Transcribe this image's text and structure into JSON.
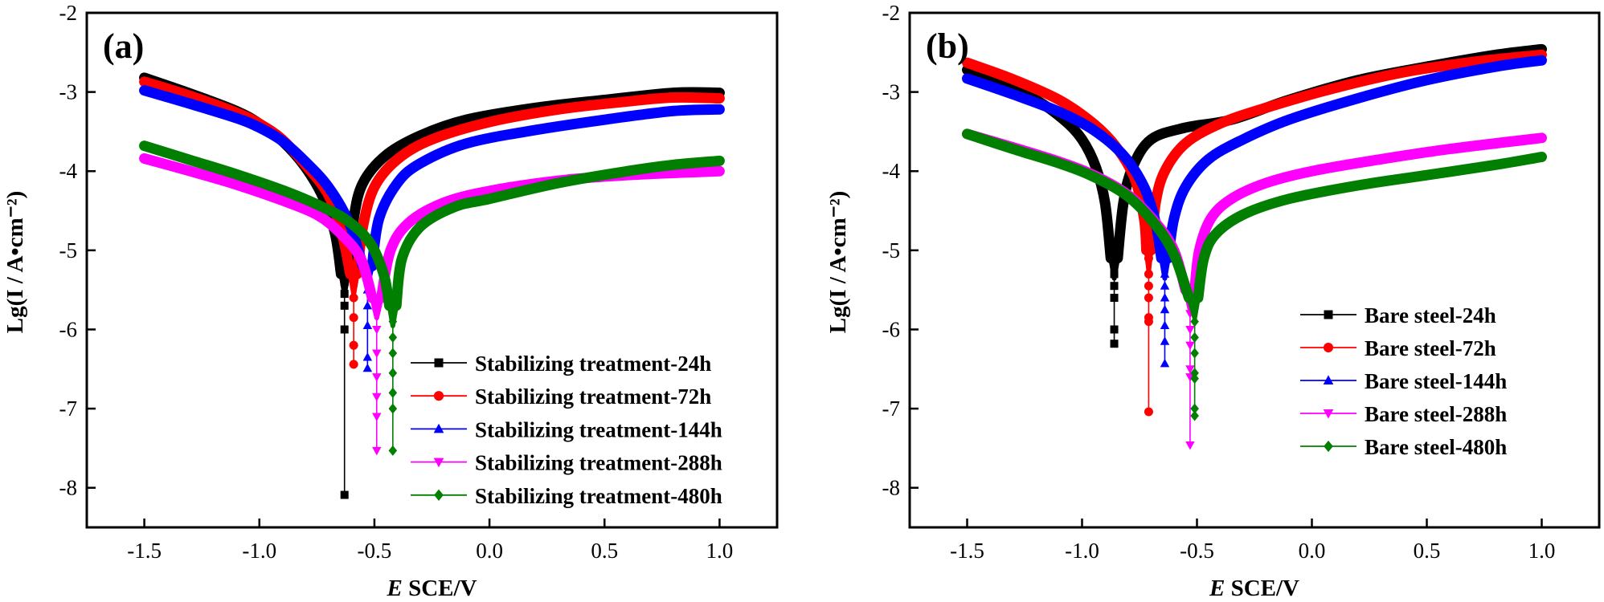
{
  "chart_data": [
    {
      "type": "line",
      "panel_label": "(a)",
      "xlabel_italic": "E",
      "xlabel_rest": " SCE/V",
      "ylabel": "Lg(I / A•cm⁻²)",
      "xlim": [
        -1.75,
        1.25
      ],
      "ylim": [
        -8.5,
        -2
      ],
      "xticks": [
        -1.5,
        -1.0,
        -0.5,
        0.0,
        0.5,
        1.0
      ],
      "xtick_labels": [
        "-1.5",
        "-1.0",
        "-0.5",
        "0.0",
        "0.5",
        "1.0"
      ],
      "yticks": [
        -2,
        -3,
        -4,
        -5,
        -6,
        -7,
        -8
      ],
      "ytick_labels": [
        "-2",
        "-3",
        "-4",
        "-5",
        "-6",
        "-7",
        "-8"
      ],
      "legend_position": "bottom-right",
      "series": [
        {
          "name": "Stabilizing treatment-24h",
          "color": "#000000",
          "marker": "square",
          "ecorr": -0.63,
          "min_log_i": -8.09,
          "cathodic": [
            [
              -1.5,
              -2.82
            ],
            [
              -1.3,
              -3.02
            ],
            [
              -1.1,
              -3.24
            ],
            [
              -1.0,
              -3.4
            ],
            [
              -0.9,
              -3.62
            ],
            [
              -0.8,
              -3.95
            ],
            [
              -0.72,
              -4.35
            ],
            [
              -0.67,
              -4.8
            ],
            [
              -0.645,
              -5.3
            ]
          ],
          "anodic": [
            [
              -0.615,
              -5.3
            ],
            [
              -0.59,
              -4.6
            ],
            [
              -0.55,
              -4.15
            ],
            [
              -0.45,
              -3.8
            ],
            [
              -0.3,
              -3.55
            ],
            [
              -0.1,
              -3.35
            ],
            [
              0.2,
              -3.2
            ],
            [
              0.5,
              -3.1
            ],
            [
              0.8,
              -3.01
            ],
            [
              1.0,
              -3.01
            ]
          ],
          "tip_markers": [
            -5.4,
            -5.55,
            -5.7,
            -6.0,
            -8.09
          ]
        },
        {
          "name": "Stabilizing treatment-72h",
          "color": "#ff0000",
          "marker": "circle",
          "ecorr": -0.59,
          "min_log_i": -6.44,
          "cathodic": [
            [
              -1.5,
              -2.87
            ],
            [
              -1.3,
              -3.05
            ],
            [
              -1.1,
              -3.26
            ],
            [
              -1.0,
              -3.4
            ],
            [
              -0.9,
              -3.6
            ],
            [
              -0.8,
              -3.92
            ],
            [
              -0.7,
              -4.3
            ],
            [
              -0.64,
              -4.8
            ],
            [
              -0.605,
              -5.3
            ]
          ],
          "anodic": [
            [
              -0.575,
              -5.3
            ],
            [
              -0.55,
              -4.7
            ],
            [
              -0.5,
              -4.2
            ],
            [
              -0.4,
              -3.85
            ],
            [
              -0.25,
              -3.6
            ],
            [
              0.0,
              -3.38
            ],
            [
              0.3,
              -3.22
            ],
            [
              0.6,
              -3.12
            ],
            [
              0.8,
              -3.07
            ],
            [
              1.0,
              -3.08
            ]
          ],
          "tip_markers": [
            -5.4,
            -5.6,
            -5.85,
            -6.2,
            -6.44
          ]
        },
        {
          "name": "Stabilizing treatment-144h",
          "color": "#0000ff",
          "marker": "triangle-up",
          "ecorr": -0.53,
          "min_log_i": -6.49,
          "cathodic": [
            [
              -1.5,
              -2.98
            ],
            [
              -1.3,
              -3.15
            ],
            [
              -1.1,
              -3.33
            ],
            [
              -1.0,
              -3.45
            ],
            [
              -0.9,
              -3.62
            ],
            [
              -0.8,
              -3.88
            ],
            [
              -0.7,
              -4.2
            ],
            [
              -0.61,
              -4.65
            ],
            [
              -0.55,
              -5.2
            ]
          ],
          "anodic": [
            [
              -0.51,
              -5.2
            ],
            [
              -0.48,
              -4.6
            ],
            [
              -0.4,
              -4.15
            ],
            [
              -0.3,
              -3.9
            ],
            [
              -0.1,
              -3.65
            ],
            [
              0.2,
              -3.48
            ],
            [
              0.5,
              -3.35
            ],
            [
              0.8,
              -3.24
            ],
            [
              1.0,
              -3.22
            ]
          ],
          "tip_markers": [
            -5.3,
            -5.5,
            -5.7,
            -5.95,
            -6.35,
            -6.49
          ]
        },
        {
          "name": "Stabilizing treatment-288h",
          "color": "#ff00ff",
          "marker": "triangle-down",
          "ecorr": -0.49,
          "min_log_i": -7.53,
          "cathodic": [
            [
              -1.5,
              -3.84
            ],
            [
              -1.3,
              -4.0
            ],
            [
              -1.1,
              -4.17
            ],
            [
              -0.9,
              -4.37
            ],
            [
              -0.75,
              -4.55
            ],
            [
              -0.65,
              -4.78
            ],
            [
              -0.56,
              -5.1
            ],
            [
              -0.51,
              -5.6
            ]
          ],
          "anodic": [
            [
              -0.47,
              -5.6
            ],
            [
              -0.43,
              -5.0
            ],
            [
              -0.35,
              -4.65
            ],
            [
              -0.2,
              -4.4
            ],
            [
              0.0,
              -4.25
            ],
            [
              0.3,
              -4.12
            ],
            [
              0.6,
              -4.05
            ],
            [
              1.0,
              -4.0
            ]
          ],
          "tip_markers": [
            -5.8,
            -6.0,
            -6.3,
            -6.6,
            -6.85,
            -7.1,
            -7.53
          ]
        },
        {
          "name": "Stabilizing treatment-480h",
          "color": "#007f00",
          "marker": "diamond",
          "ecorr": -0.42,
          "min_log_i": -7.53,
          "cathodic": [
            [
              -1.5,
              -3.68
            ],
            [
              -1.3,
              -3.86
            ],
            [
              -1.1,
              -4.04
            ],
            [
              -0.9,
              -4.24
            ],
            [
              -0.75,
              -4.42
            ],
            [
              -0.62,
              -4.62
            ],
            [
              -0.52,
              -4.9
            ],
            [
              -0.46,
              -5.3
            ],
            [
              -0.435,
              -5.7
            ]
          ],
          "anodic": [
            [
              -0.405,
              -5.7
            ],
            [
              -0.38,
              -5.1
            ],
            [
              -0.3,
              -4.7
            ],
            [
              -0.15,
              -4.45
            ],
            [
              0.0,
              -4.35
            ],
            [
              0.3,
              -4.15
            ],
            [
              0.6,
              -4.0
            ],
            [
              0.8,
              -3.92
            ],
            [
              1.0,
              -3.87
            ]
          ],
          "tip_markers": [
            -5.9,
            -6.1,
            -6.3,
            -6.55,
            -6.8,
            -7.0,
            -7.53
          ]
        }
      ]
    },
    {
      "type": "line",
      "panel_label": "(b)",
      "xlabel_italic": "E",
      "xlabel_rest": " SCE/V",
      "ylabel": "Lg(I / A•cm⁻²)",
      "xlim": [
        -1.75,
        1.25
      ],
      "ylim": [
        -8.5,
        -2
      ],
      "xticks": [
        -1.5,
        -1.0,
        -0.5,
        0.0,
        0.5,
        1.0
      ],
      "xtick_labels": [
        "-1.5",
        "-1.0",
        "-0.5",
        "0.0",
        "0.5",
        "1.0"
      ],
      "yticks": [
        -2,
        -3,
        -4,
        -5,
        -6,
        -7,
        -8
      ],
      "ytick_labels": [
        "-2",
        "-3",
        "-4",
        "-5",
        "-6",
        "-7",
        "-8"
      ],
      "legend_position": "center-right",
      "series": [
        {
          "name": "Bare steel-24h",
          "color": "#000000",
          "marker": "square",
          "ecorr": -0.86,
          "min_log_i": -6.18,
          "cathodic": [
            [
              -1.5,
              -2.72
            ],
            [
              -1.35,
              -2.9
            ],
            [
              -1.2,
              -3.1
            ],
            [
              -1.08,
              -3.35
            ],
            [
              -1.0,
              -3.6
            ],
            [
              -0.94,
              -3.95
            ],
            [
              -0.9,
              -4.4
            ],
            [
              -0.875,
              -5.1
            ]
          ],
          "anodic": [
            [
              -0.845,
              -5.1
            ],
            [
              -0.82,
              -4.4
            ],
            [
              -0.78,
              -3.95
            ],
            [
              -0.7,
              -3.6
            ],
            [
              -0.55,
              -3.45
            ],
            [
              -0.35,
              -3.35
            ],
            [
              -0.1,
              -3.1
            ],
            [
              0.2,
              -2.85
            ],
            [
              0.5,
              -2.68
            ],
            [
              0.8,
              -2.53
            ],
            [
              1.0,
              -2.46
            ]
          ],
          "tip_markers": [
            -5.15,
            -5.3,
            -5.45,
            -5.6,
            -6.0,
            -6.18
          ]
        },
        {
          "name": "Bare steel-72h",
          "color": "#ff0000",
          "marker": "circle",
          "ecorr": -0.71,
          "min_log_i": -7.04,
          "cathodic": [
            [
              -1.5,
              -2.63
            ],
            [
              -1.3,
              -2.84
            ],
            [
              -1.1,
              -3.1
            ],
            [
              -0.95,
              -3.4
            ],
            [
              -0.85,
              -3.7
            ],
            [
              -0.77,
              -4.1
            ],
            [
              -0.73,
              -4.6
            ],
            [
              -0.72,
              -5.0
            ]
          ],
          "anodic": [
            [
              -0.7,
              -5.0
            ],
            [
              -0.68,
              -4.4
            ],
            [
              -0.64,
              -4.0
            ],
            [
              -0.55,
              -3.65
            ],
            [
              -0.4,
              -3.4
            ],
            [
              -0.2,
              -3.2
            ],
            [
              0.1,
              -2.95
            ],
            [
              0.4,
              -2.75
            ],
            [
              0.7,
              -2.62
            ],
            [
              1.0,
              -2.53
            ]
          ],
          "tip_markers": [
            -5.1,
            -5.3,
            -5.45,
            -5.6,
            -5.85,
            -5.9,
            -7.04
          ]
        },
        {
          "name": "Bare steel-144h",
          "color": "#0000ff",
          "marker": "triangle-up",
          "ecorr": -0.64,
          "min_log_i": -6.43,
          "cathodic": [
            [
              -1.5,
              -2.83
            ],
            [
              -1.3,
              -3.03
            ],
            [
              -1.1,
              -3.25
            ],
            [
              -0.95,
              -3.48
            ],
            [
              -0.82,
              -3.8
            ],
            [
              -0.73,
              -4.2
            ],
            [
              -0.68,
              -4.65
            ],
            [
              -0.655,
              -5.1
            ]
          ],
          "anodic": [
            [
              -0.625,
              -5.1
            ],
            [
              -0.6,
              -4.6
            ],
            [
              -0.55,
              -4.2
            ],
            [
              -0.45,
              -3.85
            ],
            [
              -0.3,
              -3.6
            ],
            [
              -0.1,
              -3.35
            ],
            [
              0.2,
              -3.08
            ],
            [
              0.5,
              -2.85
            ],
            [
              0.8,
              -2.68
            ],
            [
              1.0,
              -2.6
            ]
          ],
          "tip_markers": [
            -5.3,
            -5.45,
            -5.6,
            -5.75,
            -5.95,
            -6.15,
            -6.43
          ]
        },
        {
          "name": "Bare steel-288h",
          "color": "#ff00ff",
          "marker": "triangle-down",
          "ecorr": -0.53,
          "min_log_i": -7.46,
          "cathodic": [
            [
              -1.5,
              -3.53
            ],
            [
              -1.3,
              -3.7
            ],
            [
              -1.1,
              -3.88
            ],
            [
              -0.95,
              -4.05
            ],
            [
              -0.8,
              -4.3
            ],
            [
              -0.68,
              -4.65
            ],
            [
              -0.6,
              -5.0
            ],
            [
              -0.55,
              -5.5
            ]
          ],
          "anodic": [
            [
              -0.51,
              -5.5
            ],
            [
              -0.49,
              -5.0
            ],
            [
              -0.44,
              -4.6
            ],
            [
              -0.35,
              -4.35
            ],
            [
              -0.2,
              -4.15
            ],
            [
              0.0,
              -4.0
            ],
            [
              0.3,
              -3.85
            ],
            [
              0.6,
              -3.72
            ],
            [
              1.0,
              -3.58
            ]
          ],
          "tip_markers": [
            -5.8,
            -6.0,
            -6.2,
            -6.5,
            -6.6,
            -7.46
          ]
        },
        {
          "name": "Bare steel-480h",
          "color": "#007f00",
          "marker": "diamond",
          "ecorr": -0.51,
          "min_log_i": -7.09,
          "cathodic": [
            [
              -1.5,
              -3.53
            ],
            [
              -1.3,
              -3.72
            ],
            [
              -1.1,
              -3.9
            ],
            [
              -0.95,
              -4.07
            ],
            [
              -0.8,
              -4.32
            ],
            [
              -0.68,
              -4.68
            ],
            [
              -0.6,
              -5.05
            ],
            [
              -0.535,
              -5.6
            ]
          ],
          "anodic": [
            [
              -0.495,
              -5.6
            ],
            [
              -0.47,
              -5.1
            ],
            [
              -0.42,
              -4.8
            ],
            [
              -0.3,
              -4.55
            ],
            [
              -0.1,
              -4.35
            ],
            [
              0.2,
              -4.18
            ],
            [
              0.5,
              -4.05
            ],
            [
              0.8,
              -3.92
            ],
            [
              1.0,
              -3.82
            ]
          ],
          "tip_markers": [
            -5.9,
            -6.1,
            -6.3,
            -6.55,
            -6.62,
            -7.0,
            -7.09
          ]
        }
      ]
    }
  ]
}
